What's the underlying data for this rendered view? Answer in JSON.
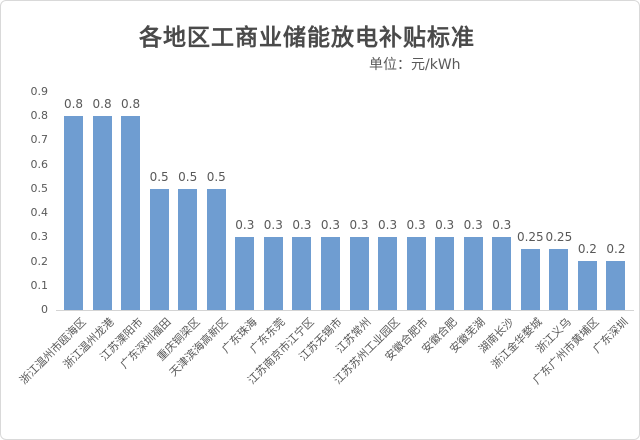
{
  "chart_data": {
    "type": "bar",
    "title": "各地区工商业储能放电补贴标准",
    "unit_label": "单位：元/kWh",
    "categories": [
      "浙江温州市瓯海区",
      "浙江温州龙港",
      "江苏溧阳市",
      "广东深圳福田",
      "重庆铜梁区",
      "天津滨海高新区",
      "广东珠海",
      "广东东莞",
      "江苏南京市江宁区",
      "江苏无锡市",
      "江苏常州",
      "江苏苏州工业园区",
      "安徽合肥市",
      "安徽合肥",
      "安徽芜湖",
      "湖南长沙",
      "浙江金华婺城",
      "浙江义乌",
      "广东广州市黄埔区",
      "广东深圳"
    ],
    "values": [
      0.8,
      0.8,
      0.8,
      0.5,
      0.5,
      0.5,
      0.3,
      0.3,
      0.3,
      0.3,
      0.3,
      0.3,
      0.3,
      0.3,
      0.3,
      0.3,
      0.25,
      0.25,
      0.2,
      0.2
    ],
    "y_ticks": [
      "0",
      "0.1",
      "0.2",
      "0.3",
      "0.4",
      "0.5",
      "0.6",
      "0.7",
      "0.8",
      "0.9"
    ],
    "ylim": [
      0,
      0.9
    ],
    "xlabel": "",
    "ylabel": "",
    "grid": false,
    "legend": "none",
    "bar_color": "#6f9dd1",
    "title_color": "#4a4a4a",
    "axis_text_color": "#595959"
  }
}
